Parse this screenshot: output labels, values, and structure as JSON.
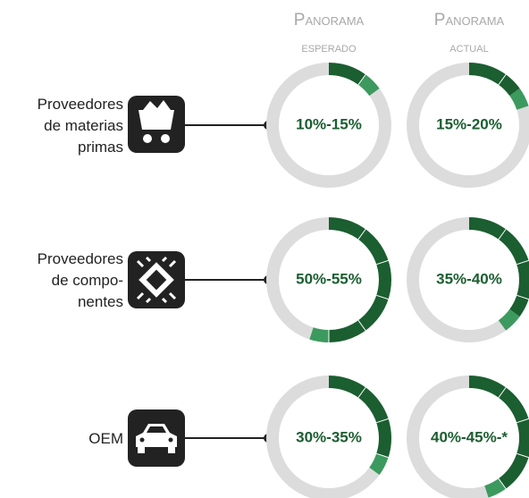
{
  "headers": [
    {
      "line1": "Panorama",
      "line2": "esperado"
    },
    {
      "line1": "Panorama",
      "line2": "actual"
    }
  ],
  "rows": [
    {
      "label": [
        "Proveedores",
        "de materias",
        "primas"
      ],
      "icon": "cart",
      "charts": [
        {
          "type": "donut",
          "values": [
            10,
            15
          ],
          "value_label": "10%-15%"
        },
        {
          "type": "donut",
          "values": [
            15,
            20
          ],
          "value_label": "15%-20%"
        }
      ]
    },
    {
      "label": [
        "Proveedores",
        "de compo-",
        "nentes"
      ],
      "icon": "chip",
      "charts": [
        {
          "type": "donut",
          "values": [
            50,
            55
          ],
          "value_label": "50%-55%"
        },
        {
          "type": "donut",
          "values": [
            35,
            40
          ],
          "value_label": "35%-40%"
        }
      ]
    },
    {
      "label": [
        "OEM"
      ],
      "icon": "car",
      "charts": [
        {
          "type": "donut",
          "values": [
            30,
            35
          ],
          "value_label": "30%-35%"
        },
        {
          "type": "donut",
          "values": [
            40,
            45
          ],
          "value_label": "40%-45%-*"
        }
      ]
    }
  ],
  "colors": {
    "low": "#1b5e30",
    "high": "#3c9a5e",
    "track": "#dcdcdc"
  }
}
